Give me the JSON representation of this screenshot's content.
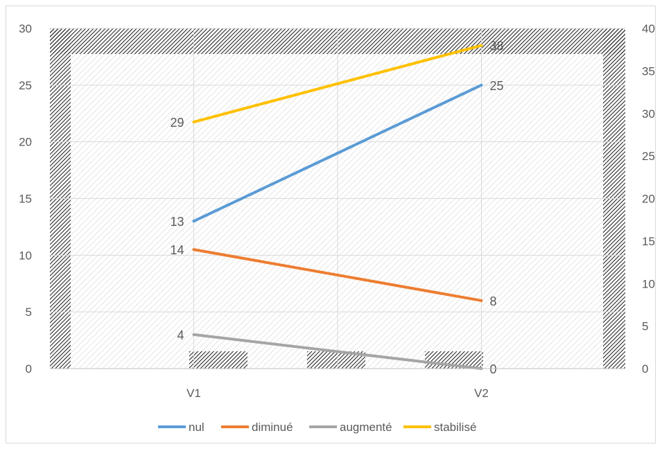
{
  "chart_data": {
    "type": "line",
    "categories": [
      "V1",
      "V2"
    ],
    "axes": {
      "primary": {
        "min": 0,
        "max": 30,
        "ticks": [
          0,
          5,
          10,
          15,
          20,
          25,
          30
        ]
      },
      "secondary": {
        "min": 0,
        "max": 40,
        "ticks": [
          0,
          5,
          10,
          15,
          20,
          25,
          30,
          35,
          40
        ]
      }
    },
    "series": [
      {
        "name": "nul",
        "axis": "primary",
        "values": [
          13,
          25
        ],
        "labels": [
          "13",
          "25"
        ],
        "color": "#5b9bd5"
      },
      {
        "name": "diminué",
        "axis": "secondary",
        "values": [
          14,
          8
        ],
        "labels": [
          "14",
          "8"
        ],
        "color": "#ed7d31"
      },
      {
        "name": "augmenté",
        "axis": "secondary",
        "values": [
          4,
          0
        ],
        "labels": [
          "4",
          "0"
        ],
        "color": "#a5a5a5"
      },
      {
        "name": "stabilisé",
        "axis": "secondary",
        "values": [
          29,
          38
        ],
        "labels": [
          "29",
          "38"
        ],
        "color": "#ffc000"
      }
    ],
    "legend_position": "bottom",
    "grid": true
  }
}
